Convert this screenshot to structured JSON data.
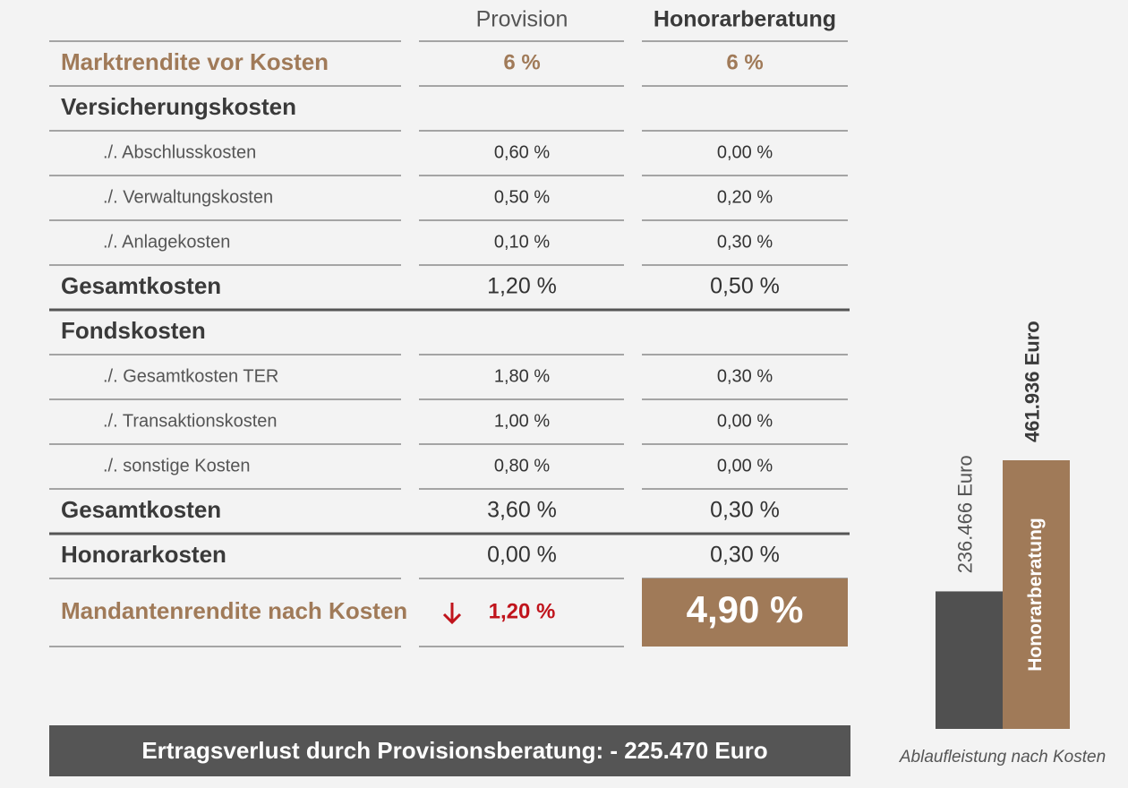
{
  "table": {
    "columns": [
      "Provision",
      "Honorarberatung"
    ],
    "rows": [
      [
        "Marktrendite vor Kosten",
        "6 %",
        "6 %"
      ],
      [
        "Versicherungskosten",
        null,
        null
      ],
      [
        "./. Abschlusskosten",
        "0,60 %",
        "0,00 %"
      ],
      [
        "./. Verwaltungskosten",
        "0,50 %",
        "0,20 %"
      ],
      [
        "./. Anlagekosten",
        "0,10 %",
        "0,30 %"
      ],
      [
        "Gesamtkosten",
        "1,20 %",
        "0,50 %"
      ],
      [
        "Fondskosten",
        null,
        null
      ],
      [
        "./. Gesamtkosten TER",
        "1,80 %",
        "0,30 %"
      ],
      [
        "./. Transaktionskosten",
        "1,00 %",
        "0,00 %"
      ],
      [
        "./. sonstige Kosten",
        "0,80 %",
        "0,00 %"
      ],
      [
        "Gesamtkosten",
        "3,60 %",
        "0,30 %"
      ],
      [
        "Honorarkosten",
        "0,00 %",
        "0,30 %"
      ],
      [
        "Mandantenrendite nach Kosten",
        "1,20 %",
        "4,90 %"
      ]
    ]
  },
  "banner": "Ertragsverlust durch Provisionsberatung: - 225.470 Euro",
  "bars": {
    "items": [
      {
        "value": 236466,
        "value_label": "236.466 Euro",
        "color": "#505050"
      },
      {
        "value": 461936,
        "value_label": "461.936 Euro",
        "name": "Honorarberatung",
        "color": "#a07a58"
      }
    ],
    "caption": "Ablaufleistung nach Kosten"
  }
}
